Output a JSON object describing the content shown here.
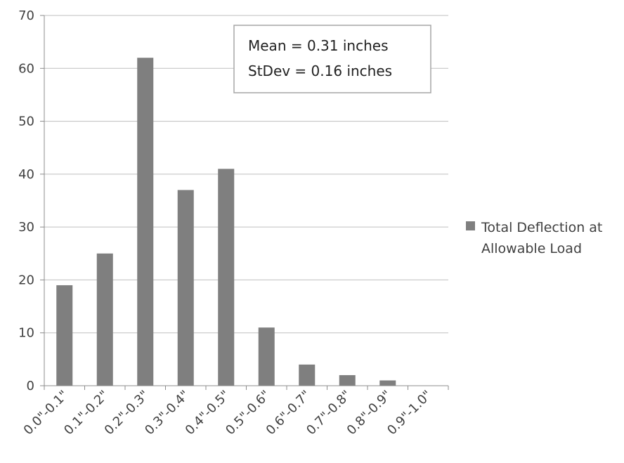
{
  "chart_data": {
    "type": "bar",
    "categories": [
      "0.0\"-0.1\"",
      "0.1\"-0.2\"",
      "0.2\"-0.3\"",
      "0.3\"-0.4\"",
      "0.4\"-0.5\"",
      "0.5\"-0.6\"",
      "0.6\"-0.7\"",
      "0.7\"-0.8\"",
      "0.8\"-0.9\"",
      "0.9\"-1.0\""
    ],
    "series": [
      {
        "name": "Total Deflection at Allowable Load",
        "values": [
          19,
          25,
          62,
          37,
          41,
          11,
          4,
          2,
          1,
          0
        ]
      }
    ],
    "title": "",
    "xlabel": "",
    "ylabel": "",
    "ylim": [
      0,
      70
    ],
    "yticks": [
      0,
      10,
      20,
      30,
      40,
      50,
      60,
      70
    ],
    "grid": true,
    "legend_position": "right",
    "annotation": {
      "lines": [
        "Mean = 0.31 inches",
        "StDev = 0.16 inches"
      ]
    },
    "colors": {
      "bar": "#7f7f7f",
      "grid": "#bfbfbf",
      "axis": "#8c8c8c",
      "text": "#404040"
    }
  }
}
